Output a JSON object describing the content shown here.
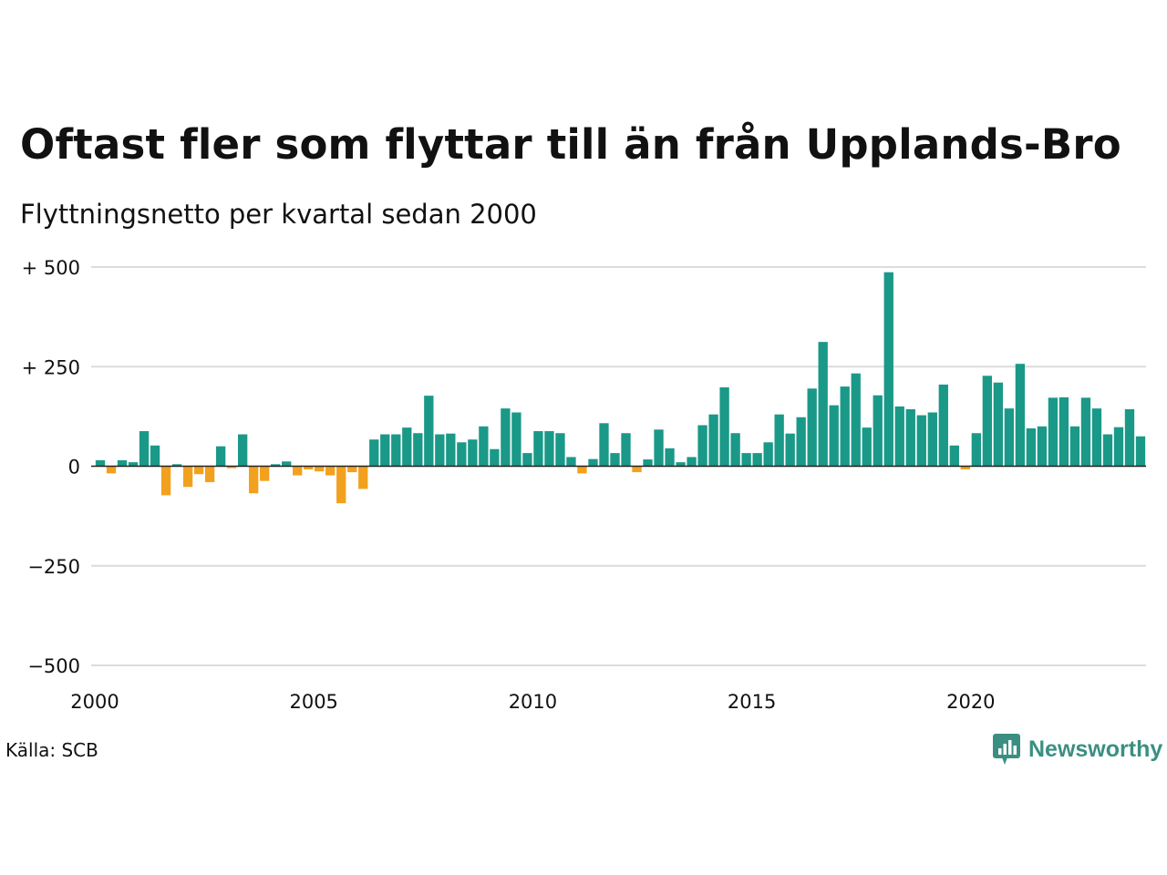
{
  "title": "Oftast fler som flyttar till än från Upplands-Bro",
  "subtitle": "Flyttningsnetto per kvartal sedan 2000",
  "source": "Källa: SCB",
  "brand": {
    "name": "Newsworthy",
    "icon": "newsworthy-logo-icon",
    "color": "#3a8f82"
  },
  "colors": {
    "positive": "#1a9988",
    "negative": "#f2a11f",
    "grid": "#dcdcdc",
    "zero": "#222222"
  },
  "chart_data": {
    "type": "bar",
    "title": "Oftast fler som flyttar till än från Upplands-Bro",
    "subtitle": "Flyttningsnetto per kvartal sedan 2000",
    "xlabel": "",
    "ylabel": "",
    "x_start": 2000,
    "periods_per_year": 4,
    "xticks": [
      2000,
      2005,
      2010,
      2015,
      2020
    ],
    "yticks": [
      500,
      250,
      0,
      -250,
      -500
    ],
    "ytick_labels": [
      "+ 500",
      "+ 250",
      "0",
      "−250",
      "−500"
    ],
    "ylim": [
      -500,
      500
    ],
    "grid": true,
    "legend": "none",
    "values": [
      15,
      -18,
      15,
      10,
      88,
      52,
      -73,
      5,
      -52,
      -20,
      -40,
      50,
      -5,
      80,
      -68,
      -37,
      5,
      12,
      -23,
      -8,
      -13,
      -23,
      -93,
      -15,
      -57,
      67,
      80,
      80,
      97,
      83,
      177,
      80,
      82,
      60,
      67,
      100,
      43,
      145,
      135,
      33,
      88,
      88,
      83,
      23,
      -18,
      18,
      108,
      33,
      83,
      -15,
      17,
      92,
      45,
      10,
      23,
      103,
      130,
      198,
      83,
      33,
      33,
      60,
      130,
      82,
      123,
      195,
      312,
      153,
      200,
      233,
      97,
      178,
      487,
      150,
      143,
      128,
      135,
      205,
      52,
      -8,
      83,
      227,
      210,
      145,
      257,
      95,
      100,
      172,
      173,
      100,
      172,
      145,
      80,
      98,
      143,
      75
    ]
  }
}
